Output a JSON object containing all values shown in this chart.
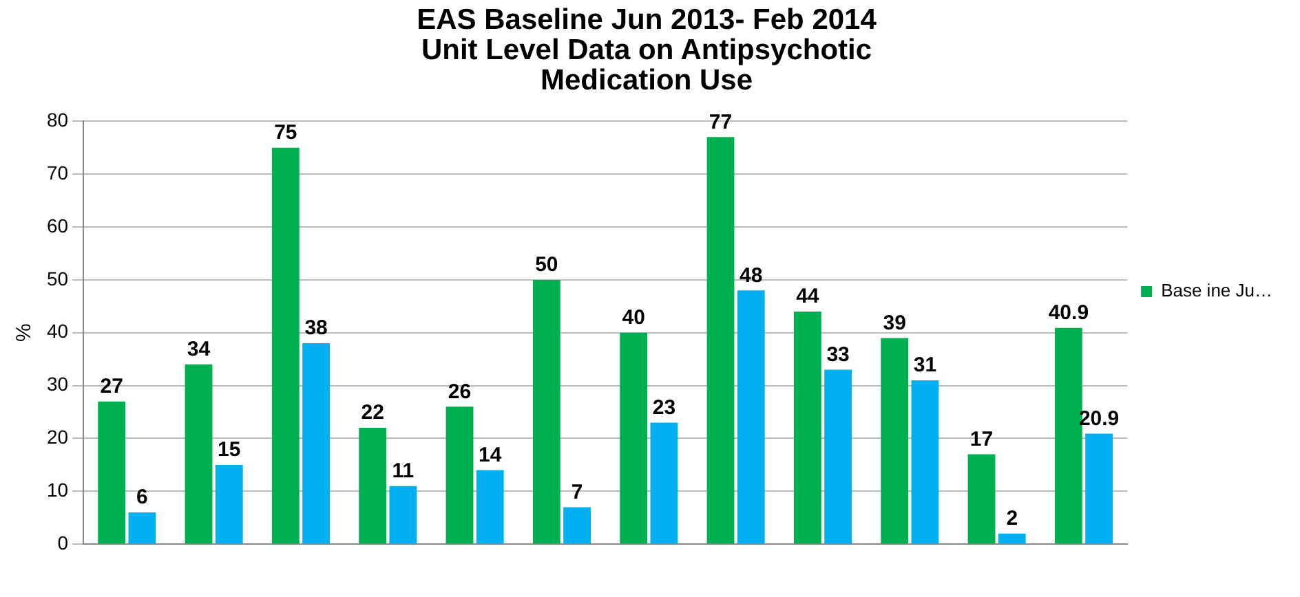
{
  "chart_data": {
    "type": "bar",
    "title": "EAS Baseline Jun 2013- Feb 2014\nUnit Level Data on Antipsychotic\nMedication Use",
    "ylabel": "%",
    "categories": [
      null,
      null,
      null,
      null,
      null,
      null,
      null,
      null,
      null,
      null,
      null,
      null
    ],
    "series": [
      {
        "name": "Base ine Ju…",
        "color": "#00b050",
        "values": [
          27,
          34,
          75,
          22,
          26,
          50,
          40,
          77,
          44,
          39,
          17,
          40.9
        ]
      },
      {
        "color": "#00b0f0",
        "values": [
          6,
          15,
          38,
          11,
          14,
          7,
          23,
          48,
          33,
          31,
          2,
          20.9
        ]
      }
    ],
    "ylim": [
      0,
      80
    ],
    "yticks": [
      0,
      10,
      20,
      30,
      40,
      50,
      60,
      70,
      80
    ],
    "grid": "y",
    "legend": "right",
    "data_labels": true
  }
}
